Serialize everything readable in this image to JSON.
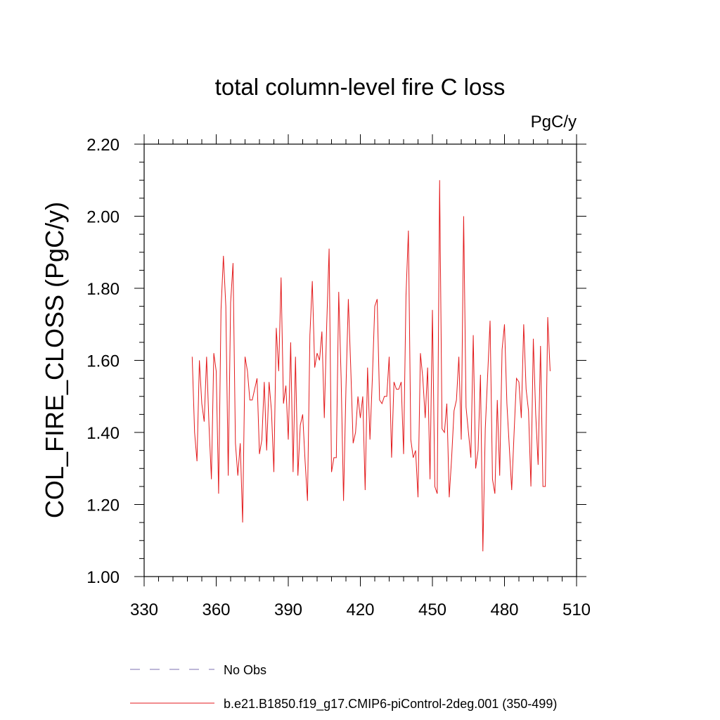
{
  "chart_data": {
    "type": "line",
    "title": "total column-level fire C loss",
    "units_label": "PgC/y",
    "ylabel": "COL_FIRE_CLOSS  (PgC/y)",
    "xlabel": "",
    "xlim": [
      330,
      510
    ],
    "ylim": [
      1.0,
      2.2
    ],
    "x_ticks": [
      330,
      360,
      390,
      420,
      450,
      480,
      510
    ],
    "x_tick_labels": [
      "330",
      "360",
      "390",
      "420",
      "450",
      "480",
      "510"
    ],
    "y_ticks": [
      1.0,
      1.2,
      1.4,
      1.6,
      1.8,
      2.0,
      2.2
    ],
    "y_tick_labels": [
      "1.00",
      "1.20",
      "1.40",
      "1.60",
      "1.80",
      "2.00",
      "2.20"
    ],
    "grid": false,
    "legend_position": "bottom",
    "legend": [
      {
        "label": "No Obs",
        "color": "#7b6fb0",
        "style": "dashed"
      },
      {
        "label": "b.e21.B1850.f19_g17.CMIP6-piControl-2deg.001 (350-499)",
        "color": "#e31a1c",
        "style": "solid"
      }
    ],
    "series": [
      {
        "name": "b.e21.B1850.f19_g17.CMIP6-piControl-2deg.001 (350-499)",
        "color": "#e31a1c",
        "x_start": 350,
        "x_step": 1,
        "values": [
          1.61,
          1.4,
          1.32,
          1.6,
          1.48,
          1.43,
          1.61,
          1.42,
          1.27,
          1.62,
          1.57,
          1.23,
          1.74,
          1.89,
          1.75,
          1.28,
          1.76,
          1.87,
          1.37,
          1.28,
          1.37,
          1.15,
          1.61,
          1.57,
          1.49,
          1.49,
          1.52,
          1.55,
          1.34,
          1.38,
          1.54,
          1.35,
          1.54,
          1.46,
          1.29,
          1.69,
          1.57,
          1.83,
          1.48,
          1.53,
          1.38,
          1.65,
          1.29,
          1.61,
          1.28,
          1.42,
          1.45,
          1.32,
          1.21,
          1.67,
          1.82,
          1.58,
          1.62,
          1.6,
          1.68,
          1.44,
          1.7,
          1.91,
          1.29,
          1.33,
          1.33,
          1.79,
          1.55,
          1.21,
          1.52,
          1.77,
          1.58,
          1.37,
          1.4,
          1.5,
          1.44,
          1.5,
          1.24,
          1.58,
          1.38,
          1.55,
          1.75,
          1.77,
          1.49,
          1.48,
          1.5,
          1.5,
          1.61,
          1.33,
          1.54,
          1.52,
          1.52,
          1.54,
          1.34,
          1.78,
          1.96,
          1.38,
          1.33,
          1.35,
          1.22,
          1.62,
          1.55,
          1.44,
          1.58,
          1.27,
          1.74,
          1.25,
          1.23,
          2.1,
          1.41,
          1.4,
          1.48,
          1.22,
          1.33,
          1.46,
          1.49,
          1.61,
          1.38,
          2.0,
          1.47,
          1.4,
          1.33,
          1.67,
          1.3,
          1.35,
          1.56,
          1.07,
          1.41,
          1.56,
          1.71,
          1.27,
          1.23,
          1.49,
          1.28,
          1.63,
          1.7,
          1.48,
          1.36,
          1.24,
          1.4,
          1.55,
          1.54,
          1.44,
          1.7,
          1.52,
          1.46,
          1.25,
          1.66,
          1.45,
          1.31,
          1.64,
          1.25,
          1.25,
          1.72,
          1.57
        ]
      }
    ]
  }
}
